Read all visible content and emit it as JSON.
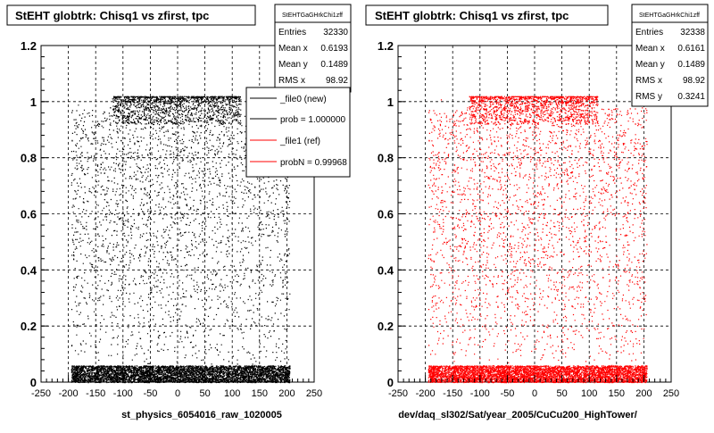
{
  "panels": [
    {
      "title": "StEHT globtrk: Chisq1 vs zfirst, tpc",
      "xlabel": "st_physics_6054016_raw_1020005",
      "stats": {
        "name": "StEHTGaGHrkChi1zff",
        "rows": [
          {
            "label": "Entries",
            "value": "32330"
          },
          {
            "label": "Mean x",
            "value": "0.6193"
          },
          {
            "label": "Mean y",
            "value": "0.1489"
          },
          {
            "label": "RMS x",
            "value": "98.92"
          }
        ]
      },
      "legend": {
        "entries": [
          {
            "label": "_file0 (new)",
            "color": "#000000"
          },
          {
            "label": "prob = 1.000000",
            "color": "#000000"
          },
          {
            "label": "_file1 (ref)",
            "color": "#ff0000"
          },
          {
            "label": "probN = 0.99968",
            "color": "#ff0000"
          }
        ]
      }
    },
    {
      "title": "StEHT globtrk: Chisq1 vs zfirst, tpc",
      "xlabel": "dev/daq_sl302/Sat/year_2005/CuCu200_HighTower/",
      "stats": {
        "name": "StEHTGaGHrkChi1zff",
        "rows": [
          {
            "label": "Entries",
            "value": "32338"
          },
          {
            "label": "Mean x",
            "value": "0.6161"
          },
          {
            "label": "Mean y",
            "value": "0.1489"
          },
          {
            "label": "RMS x",
            "value": "98.92"
          },
          {
            "label": "RMS y",
            "value": "0.3241"
          }
        ]
      }
    }
  ],
  "chart_data": [
    {
      "type": "scatter",
      "title": "StEHT globtrk: Chisq1 vs zfirst, tpc",
      "xlabel": "st_physics_6054016_raw_1020005",
      "ylabel": "",
      "xlim": [
        -250,
        250
      ],
      "ylim": [
        0,
        1.2
      ],
      "x_ticks": [
        "-250",
        "-200",
        "-150",
        "-100",
        "-50",
        "0",
        "50",
        "100",
        "150",
        "200",
        "250"
      ],
      "y_ticks": [
        "0",
        "0.2",
        "0.4",
        "0.6",
        "0.8",
        "1",
        "1.2"
      ],
      "grid": true,
      "marker_color": "#000000",
      "series": [
        {
          "name": "_file0 (new)",
          "entries": 32330,
          "mean_x": 0.6193,
          "mean_y": 0.1489,
          "rms_x": 98.92
        }
      ],
      "dense_bands": [
        {
          "x_range": [
            -195,
            205
          ],
          "y_range": [
            0,
            0.06
          ],
          "density": "very high"
        },
        {
          "x_range": [
            -120,
            115
          ],
          "y_range": [
            0.94,
            1.02
          ],
          "density": "high"
        }
      ]
    },
    {
      "type": "scatter",
      "title": "StEHT globtrk: Chisq1 vs zfirst, tpc",
      "xlabel": "dev/daq_sl302/Sat/year_2005/CuCu200_HighTower/",
      "ylabel": "",
      "xlim": [
        -250,
        250
      ],
      "ylim": [
        0,
        1.2
      ],
      "x_ticks": [
        "-250",
        "-200",
        "-150",
        "-100",
        "-50",
        "0",
        "50",
        "100",
        "150",
        "200",
        "250"
      ],
      "y_ticks": [
        "0",
        "0.2",
        "0.4",
        "0.6",
        "0.8",
        "1",
        "1.2"
      ],
      "grid": true,
      "marker_color": "#ff0000",
      "series": [
        {
          "name": "_file1 (ref)",
          "entries": 32338,
          "mean_x": 0.6161,
          "mean_y": 0.1489,
          "rms_x": 98.92,
          "rms_y": 0.3241
        }
      ],
      "dense_bands": [
        {
          "x_range": [
            -195,
            205
          ],
          "y_range": [
            0,
            0.06
          ],
          "density": "very high"
        },
        {
          "x_range": [
            -120,
            115
          ],
          "y_range": [
            0.94,
            1.02
          ],
          "density": "high"
        }
      ]
    }
  ]
}
